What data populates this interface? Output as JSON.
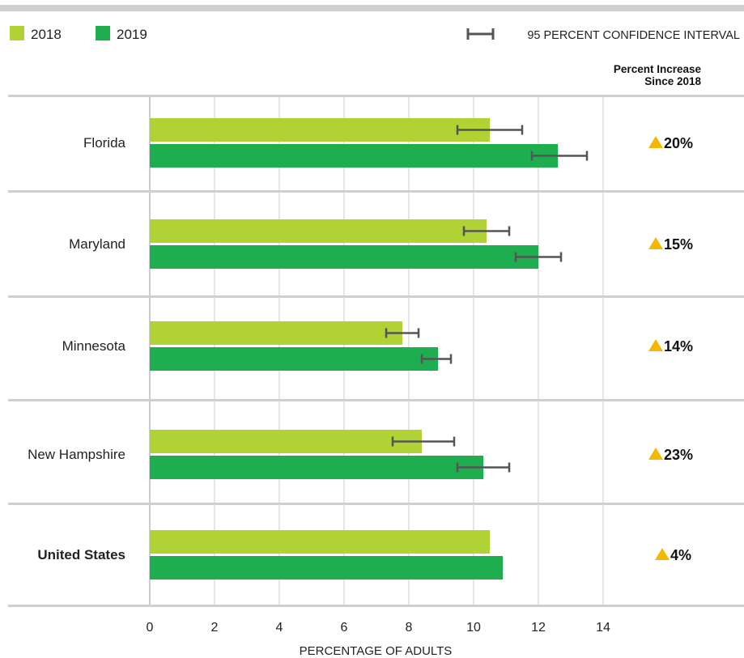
{
  "legend": {
    "items": [
      {
        "label": "2018",
        "color": "#b1d235"
      },
      {
        "label": "2019",
        "color": "#1fae4f"
      }
    ],
    "ci_label": "95 PERCENT CONFIDENCE INTERVAL"
  },
  "increase_header": [
    "Percent Increase",
    "Since 2018"
  ],
  "colors": {
    "series_2018": "#b1d235",
    "series_2019": "#1fae4f",
    "error_bar": "#555555",
    "up_arrow": "#f5b800",
    "gridline": "#cccccc",
    "separator": "#cfcfcf",
    "top_rule": "#cfcfcf"
  },
  "chart_data": {
    "type": "bar",
    "orientation": "horizontal",
    "categories": [
      "Florida",
      "Maryland",
      "Minnesota",
      "New Hampshire",
      "United States"
    ],
    "emphasized_category": "United States",
    "series": [
      {
        "name": "2018",
        "values": [
          10.5,
          10.4,
          7.8,
          8.4,
          10.5
        ],
        "ci": [
          [
            9.5,
            11.5
          ],
          [
            9.7,
            11.1
          ],
          [
            7.3,
            8.3
          ],
          [
            7.5,
            9.4
          ],
          null
        ]
      },
      {
        "name": "2019",
        "values": [
          12.6,
          12.0,
          8.9,
          10.3,
          10.9
        ],
        "ci": [
          [
            11.8,
            13.5
          ],
          [
            11.3,
            12.7
          ],
          [
            8.4,
            9.3
          ],
          [
            9.5,
            11.1
          ],
          null
        ]
      }
    ],
    "percent_increase": [
      "20%",
      "15%",
      "14%",
      "23%",
      "4%"
    ],
    "xlabel": "PERCENTAGE OF ADULTS",
    "xlim": [
      0,
      14
    ],
    "xticks": [
      0,
      2,
      4,
      6,
      8,
      10,
      12,
      14
    ],
    "grid": true,
    "legend_position": "top-left"
  }
}
